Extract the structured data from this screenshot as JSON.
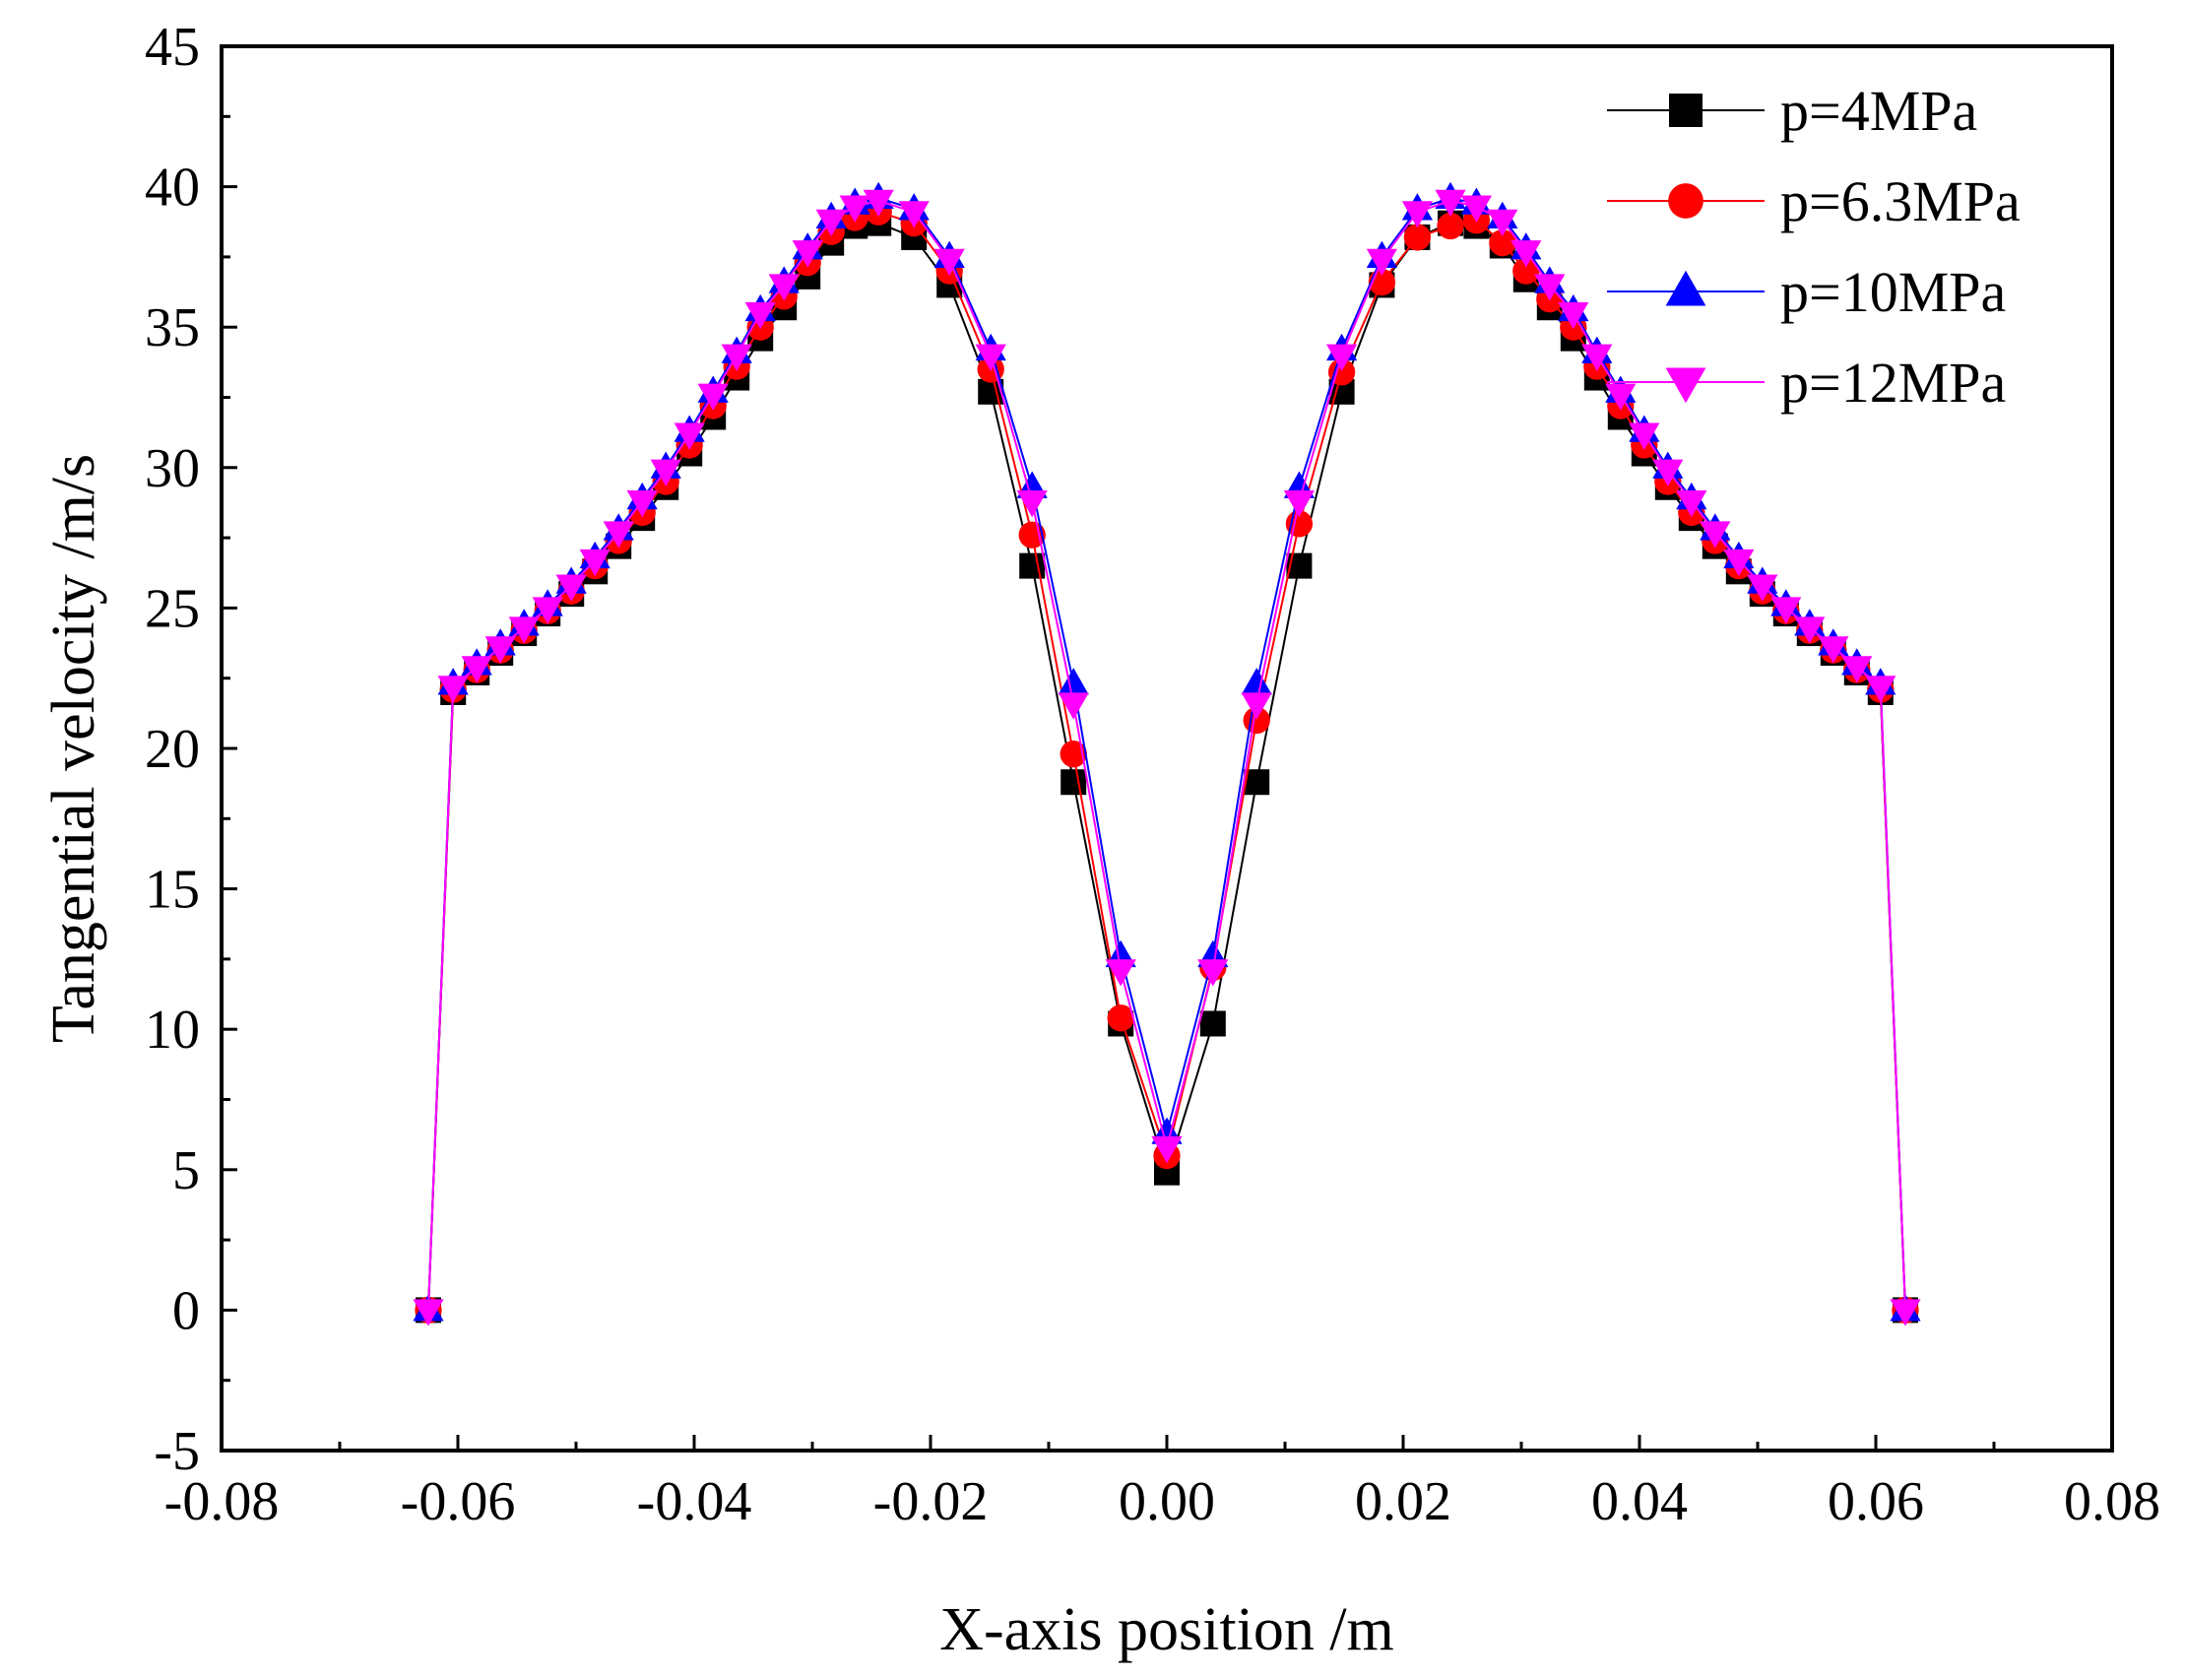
{
  "chart_data": {
    "type": "line",
    "title": "",
    "xlabel": "X-axis position /m",
    "ylabel": "Tangential velocity /m/s",
    "xlim": [
      -0.08,
      0.08
    ],
    "ylim": [
      -5,
      45
    ],
    "xticks": [
      -0.08,
      -0.06,
      -0.04,
      -0.02,
      0.0,
      0.02,
      0.04,
      0.06,
      0.08
    ],
    "xtick_labels": [
      "-0.08",
      "-0.06",
      "-0.04",
      "-0.02",
      "0.00",
      "0.02",
      "0.04",
      "0.06",
      "0.08"
    ],
    "yticks": [
      -5,
      0,
      5,
      10,
      15,
      20,
      25,
      30,
      35,
      40,
      45
    ],
    "ytick_labels": [
      "-5",
      "0",
      "5",
      "10",
      "15",
      "20",
      "25",
      "30",
      "35",
      "40",
      "45"
    ],
    "grid": false,
    "legend_position": "top-right",
    "x": [
      -0.0625,
      -0.0604,
      -0.0584,
      -0.0564,
      -0.0544,
      -0.0524,
      -0.0504,
      -0.0484,
      -0.0464,
      -0.0444,
      -0.0424,
      -0.0404,
      -0.0384,
      -0.0364,
      -0.0344,
      -0.0324,
      -0.0304,
      -0.0284,
      -0.0264,
      -0.0244,
      -0.0214,
      -0.0184,
      -0.0149,
      -0.0114,
      -0.0079,
      -0.0039,
      0.0,
      0.0039,
      0.0076,
      0.0112,
      0.0148,
      0.0182,
      0.0212,
      0.024,
      0.0262,
      0.0284,
      0.0304,
      0.0324,
      0.0344,
      0.0364,
      0.0384,
      0.0404,
      0.0424,
      0.0444,
      0.0464,
      0.0484,
      0.0504,
      0.0524,
      0.0544,
      0.0564,
      0.0584,
      0.0604,
      0.0625
    ],
    "series": [
      {
        "name": "p=4MPa",
        "color": "#000000",
        "marker": "square",
        "values": [
          0,
          22.0,
          22.7,
          23.4,
          24.1,
          24.8,
          25.5,
          26.3,
          27.2,
          28.2,
          29.3,
          30.5,
          31.8,
          33.2,
          34.6,
          35.7,
          36.8,
          38.0,
          38.6,
          38.7,
          38.2,
          36.5,
          32.7,
          26.5,
          18.8,
          10.2,
          4.9,
          10.2,
          18.8,
          26.5,
          32.7,
          36.5,
          38.2,
          38.7,
          38.6,
          37.9,
          36.7,
          35.7,
          34.6,
          33.2,
          31.8,
          30.5,
          29.3,
          28.2,
          27.2,
          26.3,
          25.5,
          24.8,
          24.1,
          23.4,
          22.7,
          22.0,
          0
        ]
      },
      {
        "name": "p=6.3MPa",
        "color": "#ff0000",
        "marker": "circle",
        "values": [
          0,
          22.1,
          22.8,
          23.5,
          24.2,
          24.9,
          25.6,
          26.5,
          27.4,
          28.4,
          29.5,
          30.8,
          32.2,
          33.6,
          35.0,
          36.1,
          37.3,
          38.4,
          38.9,
          39.1,
          38.7,
          37.0,
          33.5,
          27.6,
          19.8,
          10.4,
          5.5,
          12.2,
          21.0,
          28.0,
          33.4,
          36.6,
          38.2,
          38.6,
          38.8,
          38.0,
          37.0,
          36.0,
          35.0,
          33.6,
          32.2,
          30.8,
          29.5,
          28.4,
          27.4,
          26.5,
          25.6,
          24.9,
          24.2,
          23.5,
          22.8,
          22.1,
          0
        ]
      },
      {
        "name": "p=10MPa",
        "color": "#0000ff",
        "marker": "triangle-up",
        "values": [
          0,
          22.3,
          23.0,
          23.7,
          24.4,
          25.1,
          25.9,
          26.8,
          27.8,
          28.9,
          30.0,
          31.3,
          32.7,
          34.1,
          35.6,
          36.6,
          37.8,
          38.9,
          39.4,
          39.6,
          39.2,
          37.5,
          34.2,
          29.3,
          22.3,
          12.6,
          6.3,
          12.6,
          22.3,
          29.3,
          34.2,
          37.5,
          39.2,
          39.6,
          39.4,
          38.9,
          37.8,
          36.6,
          35.6,
          34.1,
          32.7,
          31.3,
          30.0,
          28.9,
          27.8,
          26.8,
          25.9,
          25.1,
          24.4,
          23.7,
          23.0,
          22.3,
          0
        ]
      },
      {
        "name": "p=12MPa",
        "color": "#ff00ff",
        "marker": "triangle-down",
        "values": [
          0,
          22.2,
          22.9,
          23.6,
          24.3,
          25.0,
          25.8,
          26.7,
          27.7,
          28.8,
          29.9,
          31.2,
          32.6,
          34.0,
          35.5,
          36.5,
          37.7,
          38.8,
          39.3,
          39.5,
          39.1,
          37.4,
          34.0,
          28.8,
          21.6,
          12.1,
          5.8,
          12.1,
          21.6,
          28.8,
          34.0,
          37.4,
          39.1,
          39.5,
          39.3,
          38.8,
          37.7,
          36.5,
          35.5,
          34.0,
          32.6,
          31.2,
          29.9,
          28.8,
          27.7,
          26.7,
          25.8,
          25.0,
          24.3,
          23.6,
          22.9,
          22.2,
          0
        ]
      }
    ]
  }
}
